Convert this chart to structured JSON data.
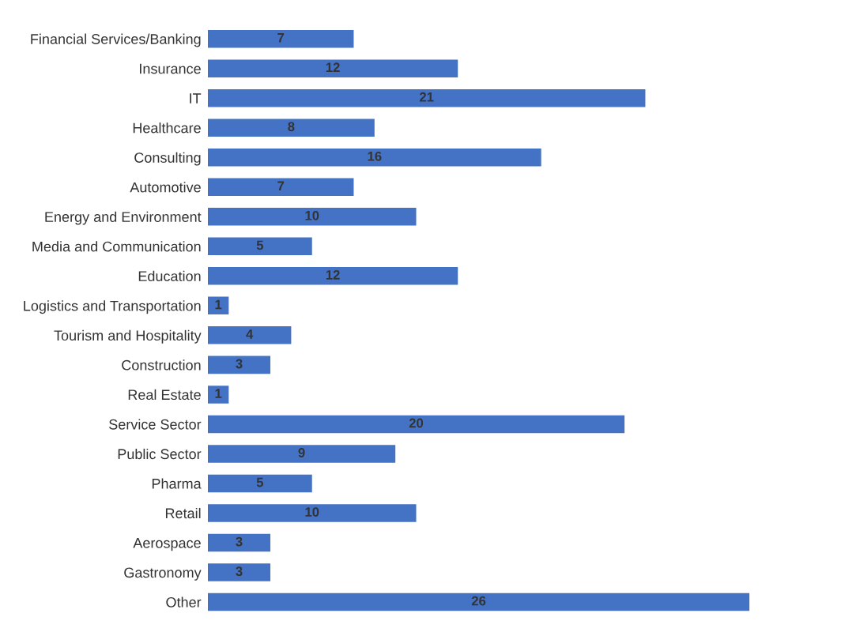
{
  "chart_data": {
    "type": "bar",
    "orientation": "horizontal",
    "categories": [
      "Financial Services/Banking",
      "Insurance",
      "IT",
      "Healthcare",
      "Consulting",
      "Automotive",
      "Energy and Environment",
      "Media and Communication",
      "Education",
      "Logistics and Transportation",
      "Tourism and Hospitality",
      "Construction",
      "Real Estate",
      "Service Sector",
      "Public Sector",
      "Pharma",
      "Retail",
      "Aerospace",
      "Gastronomy",
      "Other"
    ],
    "values": [
      7,
      12,
      21,
      8,
      16,
      7,
      10,
      5,
      12,
      1,
      4,
      3,
      1,
      20,
      9,
      5,
      10,
      3,
      3,
      26
    ],
    "color": "#4472c4",
    "data_labels": true,
    "tick_labels": "y",
    "grid": false
  }
}
